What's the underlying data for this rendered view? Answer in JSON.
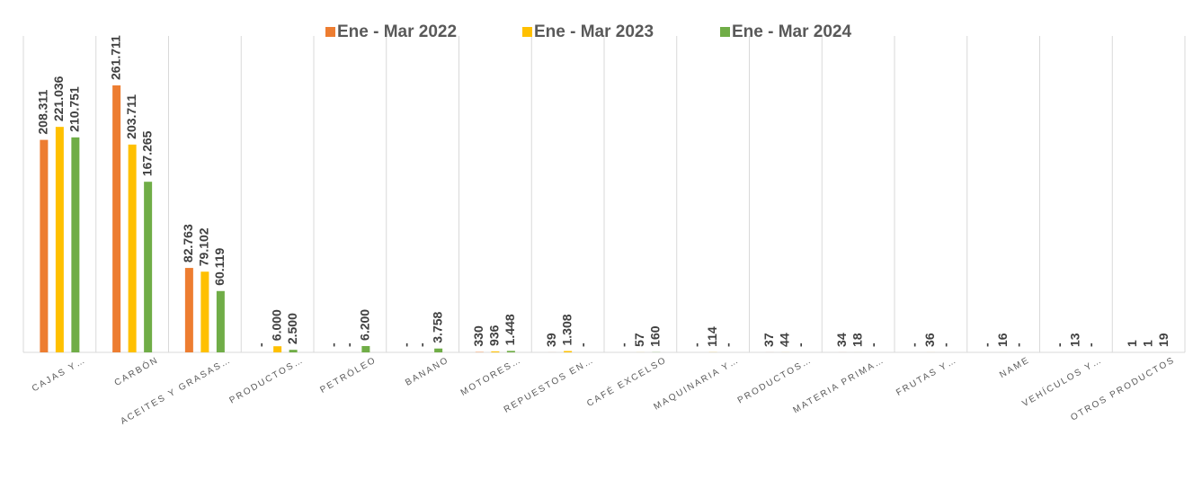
{
  "chart_data": {
    "type": "bar",
    "categories": [
      "CAJAS Y…",
      "CARBÓN",
      "ACEITES Y GRASAS…",
      "PRODUCTOS…",
      "PETRÓLEO",
      "BANANO",
      "MOTORES…",
      "REPUESTOS EN…",
      "CAFÉ EXCELSO",
      "MAQUINARIA Y…",
      "PRODUCTOS…",
      "MATERIA PRIMA…",
      "FRUTAS Y…",
      "NAME",
      "VEHÍCULOS Y…",
      "OTROS PRODUCTOS"
    ],
    "series": [
      {
        "name": "Ene - Mar 2022",
        "color": "#ED7D31",
        "values": [
          208311,
          261711,
          82763,
          0,
          0,
          0,
          330,
          39,
          0,
          0,
          37,
          34,
          0,
          0,
          0,
          1
        ],
        "value_labels": [
          "208.311",
          "261.711",
          "82.763",
          "-",
          "-",
          "-",
          "330",
          "39",
          "-",
          "-",
          "37",
          "34",
          "-",
          "-",
          "-",
          "1"
        ]
      },
      {
        "name": "Ene - Mar 2023",
        "color": "#FFC000",
        "values": [
          221036,
          203711,
          79102,
          6000,
          0,
          0,
          936,
          1308,
          57,
          114,
          44,
          18,
          36,
          16,
          13,
          1
        ],
        "value_labels": [
          "221.036",
          "203.711",
          "79.102",
          "6.000",
          "-",
          "-",
          "936",
          "1.308",
          "57",
          "114",
          "44",
          "18",
          "36",
          "16",
          "13",
          "1"
        ]
      },
      {
        "name": "Ene - Mar 2024",
        "color": "#70AD47",
        "values": [
          210751,
          167265,
          60119,
          2500,
          6200,
          3758,
          1448,
          0,
          160,
          0,
          0,
          0,
          0,
          0,
          0,
          19
        ],
        "value_labels": [
          "210.751",
          "167.265",
          "60.119",
          "2.500",
          "6.200",
          "3.758",
          "1.448",
          "-",
          "160",
          "-",
          "-",
          "-",
          "-",
          "-",
          "-",
          "19"
        ]
      }
    ]
  }
}
